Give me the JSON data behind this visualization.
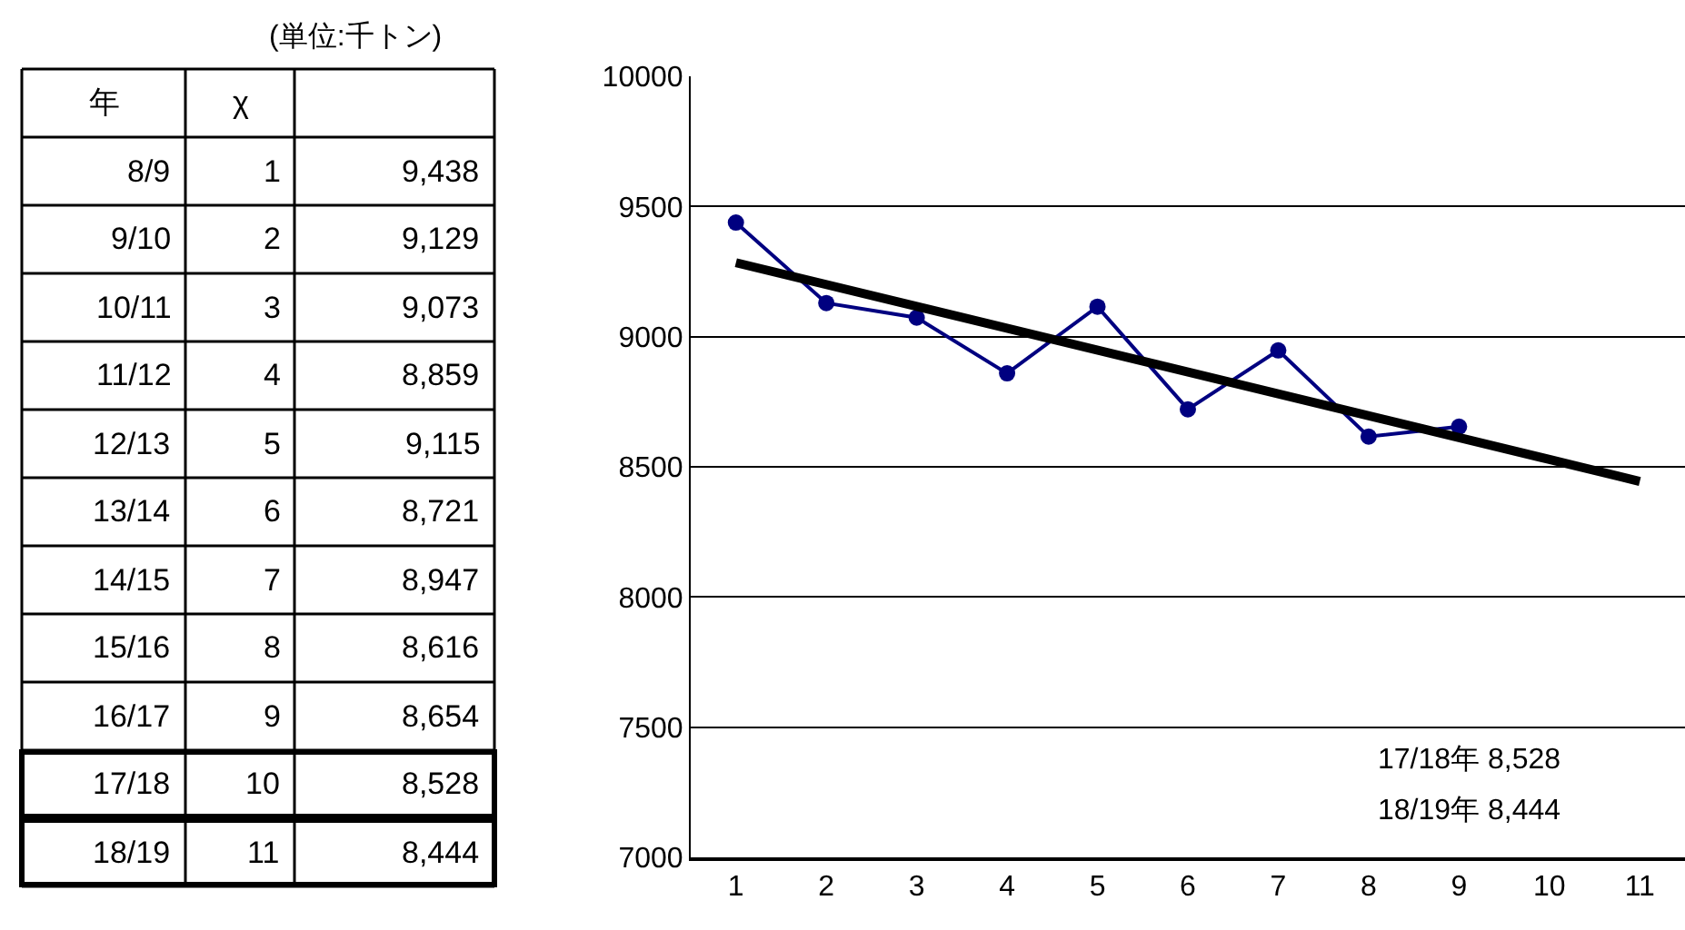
{
  "chart_data": {
    "type": "line",
    "xlim": [
      0.5,
      11.5
    ],
    "xticks": [
      1,
      2,
      3,
      4,
      5,
      6,
      7,
      8,
      9,
      10,
      11
    ],
    "ylim": [
      7000,
      10000
    ],
    "yticks": [
      7000,
      7500,
      8000,
      8500,
      9000,
      9500,
      10000
    ],
    "grid": "y",
    "series": [
      {
        "color": "#000080",
        "marker": "circle",
        "x": [
          1,
          2,
          3,
          4,
          5,
          6,
          7,
          8,
          9
        ],
        "values": [
          9438,
          9129,
          9073,
          8859,
          9115,
          8721,
          8947,
          8616,
          8654
        ]
      },
      {
        "color": "#000000",
        "marker": "none",
        "x": [
          1,
          10,
          11
        ],
        "values": [
          9284,
          8528,
          8444
        ]
      }
    ],
    "annotations": [
      "(単位:千トン)",
      "年",
      "χ",
      "8/9",
      "1",
      "9,438",
      "9/10",
      "2",
      "9,129",
      "10/11",
      "3",
      "9,073",
      "11/12",
      "4",
      "8,859",
      "12/13",
      "5",
      "9,115",
      "13/14",
      "6",
      "8,721",
      "14/15",
      "7",
      "8,947",
      "15/16",
      "8",
      "8,616",
      "16/17",
      "9",
      "8,654",
      "17/18",
      "10",
      "8,528",
      "18/19",
      "11",
      "8,444",
      "17/18年 8,528",
      "18/19年 8,444"
    ]
  }
}
